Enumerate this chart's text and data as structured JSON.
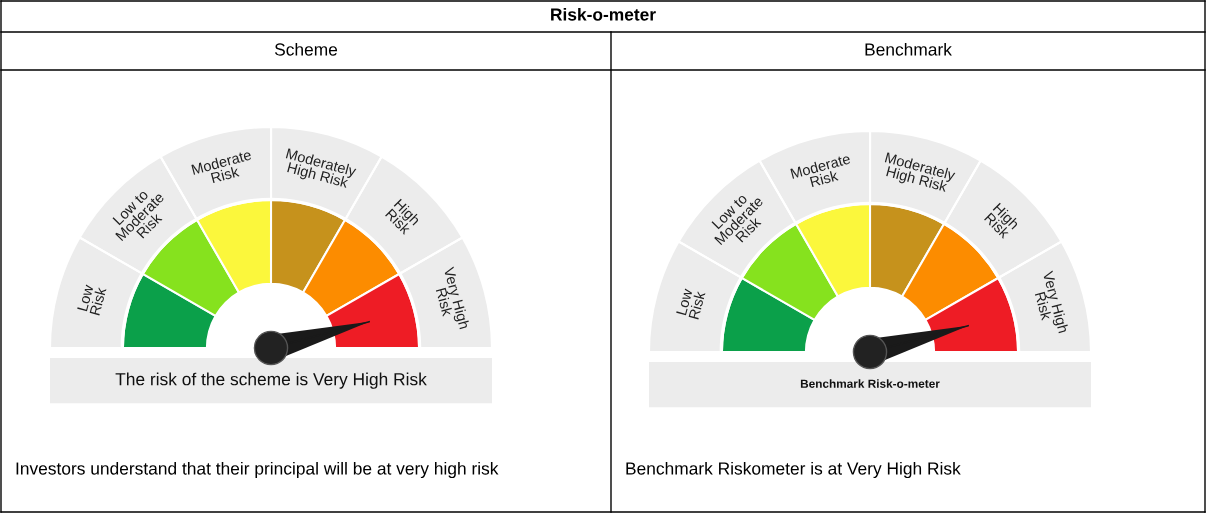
{
  "chart_data": [
    {
      "type": "donut",
      "title": "Risk-o-meter",
      "subtitle": "Scheme",
      "categories": [
        "Low\nRisk",
        "Low to\nModerate\nRisk",
        "Moderate\nRisk",
        "Moderately\nHigh Risk",
        "High\nRisk",
        "Very High\nRisk"
      ],
      "values": [
        16.67,
        16.67,
        16.67,
        16.67,
        16.66,
        16.66
      ],
      "colors": [
        "#0ba04a",
        "#86e21e",
        "#fbf73c",
        "#c6921c",
        "#fc8c00",
        "#ee1c25"
      ],
      "needle": "Very High\nRisk",
      "annotations": [
        "The risk of the scheme is Very High Risk",
        "Investors understand that their principal will be at very high risk"
      ]
    },
    {
      "type": "donut",
      "subtitle": "Benchmark",
      "categories": [
        "Low\nRisk",
        "Low to\nModerate\nRisk",
        "Moderate\nRisk",
        "Moderately\nHigh Risk",
        "High\nRisk",
        "Very High\nRisk"
      ],
      "values": [
        16.67,
        16.67,
        16.67,
        16.67,
        16.66,
        16.66
      ],
      "colors": [
        "#0ba04a",
        "#86e21e",
        "#fbf73c",
        "#c6921c",
        "#fc8c00",
        "#ee1c25"
      ],
      "needle": "Very High\nRisk",
      "annotations": [
        "Benchmark Risk-o-meter",
        "Benchmark Riskometer is at Very High Risk"
      ]
    }
  ]
}
